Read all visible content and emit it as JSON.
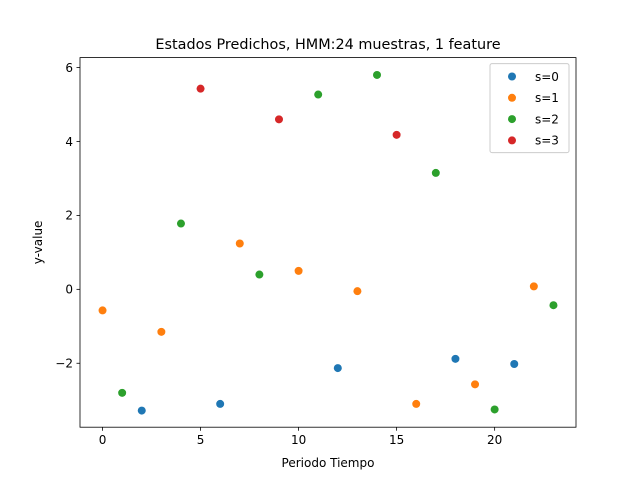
{
  "chart_data": {
    "type": "scatter",
    "title": "Estados Predichos, HMM:24 muestras, 1 feature",
    "xlabel": "Periodo Tiempo",
    "ylabel": "y-value",
    "xlim": [
      -1.15,
      24.15
    ],
    "ylim": [
      -3.73,
      6.27
    ],
    "xticks": [
      0,
      5,
      10,
      15,
      20
    ],
    "yticks": [
      -2,
      0,
      2,
      4,
      6
    ],
    "ytick_labels": [
      "−2",
      "0",
      "2",
      "4",
      "6"
    ],
    "grid": false,
    "legend_position": "top-right",
    "series": [
      {
        "name": "s=0",
        "color": "#1f77b4",
        "x": [
          2,
          6,
          12,
          18,
          21
        ],
        "y": [
          -3.28,
          -3.1,
          -2.13,
          -1.88,
          -2.02
        ]
      },
      {
        "name": "s=1",
        "color": "#ff7f0e",
        "x": [
          0,
          3,
          7,
          10,
          13,
          16,
          19,
          22
        ],
        "y": [
          -0.57,
          -1.15,
          1.24,
          0.5,
          -0.05,
          -3.1,
          -2.57,
          0.08
        ]
      },
      {
        "name": "s=2",
        "color": "#2ca02c",
        "x": [
          1,
          4,
          8,
          11,
          14,
          17,
          20,
          23
        ],
        "y": [
          -2.8,
          1.78,
          0.4,
          5.27,
          5.8,
          3.15,
          -3.25,
          -0.43
        ]
      },
      {
        "name": "s=3",
        "color": "#d62728",
        "x": [
          5,
          9,
          15
        ],
        "y": [
          5.43,
          4.6,
          4.18
        ]
      }
    ]
  }
}
